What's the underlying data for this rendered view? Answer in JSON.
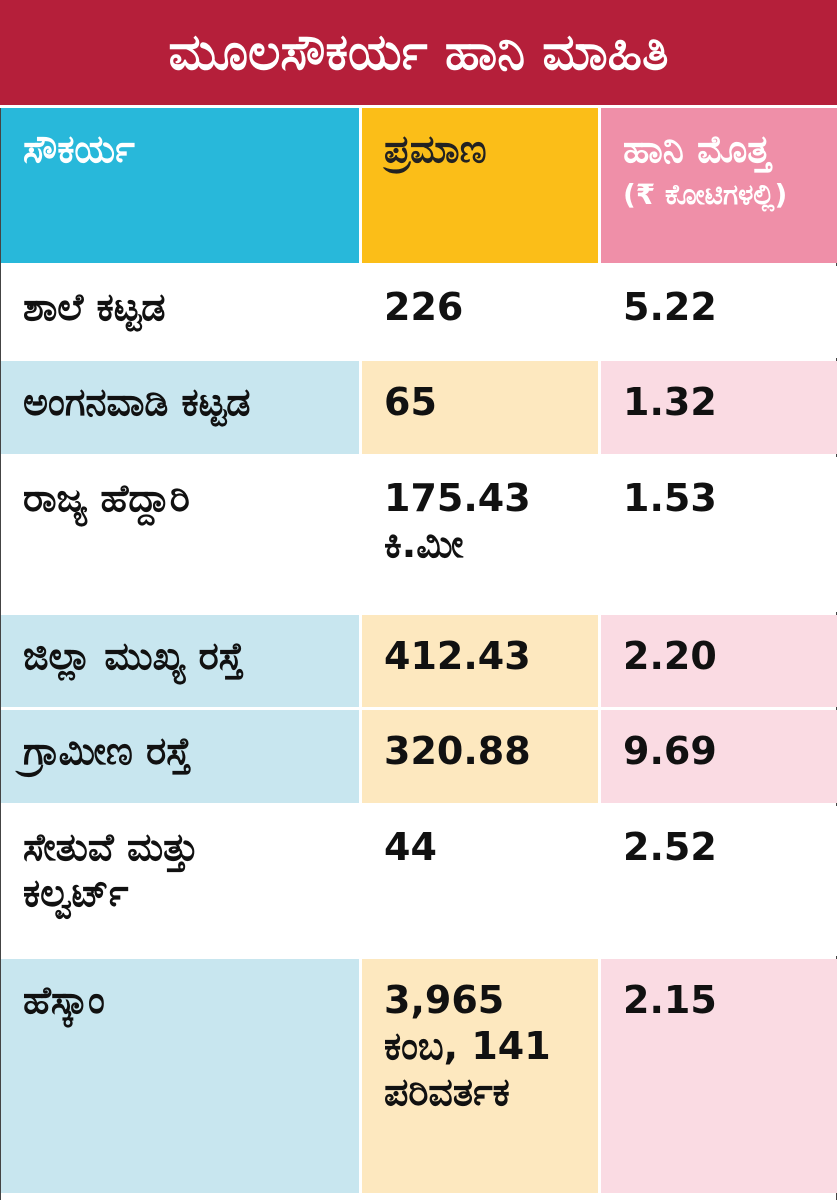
{
  "header": {
    "title": "ಮೂಲಸೌಕರ್ಯ ಹಾನಿ ಮಾಹಿತಿ"
  },
  "table": {
    "columns": [
      [
        "ಸೌಕರ್ಯ"
      ],
      [
        "ಪ್ರಮಾಣ"
      ],
      [
        "ಹಾನಿ ಮೊತ್ತ",
        "(₹ ಕೋಟಿಗಳಲ್ಲಿ)"
      ]
    ],
    "rows": [
      [
        [
          "ಶಾಲೆ ಕಟ್ಟಡ"
        ],
        [
          "226"
        ],
        [
          "5.22"
        ]
      ],
      [
        [
          "ಅಂಗನವಾಡಿ ಕಟ್ಟಡ"
        ],
        [
          "65"
        ],
        [
          "1.32"
        ]
      ],
      [
        [
          "ರಾಜ್ಯ ಹೆದ್ದಾರಿ"
        ],
        [
          "175.43",
          "ಕಿ.ಮೀ"
        ],
        [
          "1.53"
        ]
      ],
      [
        [
          "ಜಿಲ್ಲಾ ಮುಖ್ಯ ರಸ್ತೆ"
        ],
        [
          "412.43"
        ],
        [
          "2.20"
        ]
      ],
      [
        [
          "ಗ್ರಾಮೀಣ ರಸ್ತೆ"
        ],
        [
          "320.88"
        ],
        [
          "9.69"
        ]
      ],
      [
        [
          "ಸೇತುವೆ ಮತ್ತು",
          "ಕಲ್ವರ್ಟ್"
        ],
        [
          "44"
        ],
        [
          "2.52"
        ]
      ],
      [
        [
          "ಹೆಸ್ಕಾಂ"
        ],
        [
          "3,965",
          "ಕಂಬ, 141",
          "ಪರಿವರ್ತಕ"
        ],
        [
          "2.15"
        ]
      ]
    ]
  }
}
